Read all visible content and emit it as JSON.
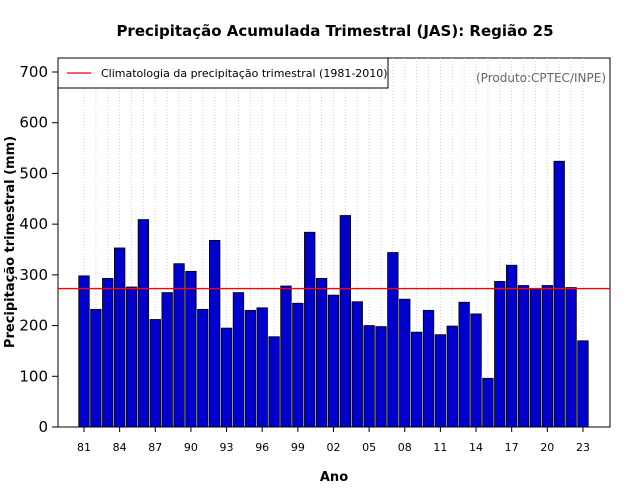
{
  "chart_data": {
    "type": "bar",
    "title": "Precipitação Acumulada Trimestral (JAS): Região 25",
    "xlabel": "Ano",
    "ylabel": "Precipitação trimestral (mm)",
    "ylim": [
      0,
      720
    ],
    "yticks": [
      0,
      100,
      200,
      300,
      400,
      500,
      600,
      700
    ],
    "grid": "vertical dotted",
    "years": [
      1981,
      1982,
      1983,
      1984,
      1985,
      1986,
      1987,
      1988,
      1989,
      1990,
      1991,
      1992,
      1993,
      1994,
      1995,
      1996,
      1997,
      1998,
      1999,
      2000,
      2001,
      2002,
      2003,
      2004,
      2005,
      2006,
      2007,
      2008,
      2009,
      2010,
      2011,
      2012,
      2013,
      2014,
      2015,
      2016,
      2017,
      2018,
      2019,
      2020,
      2021,
      2022,
      2023
    ],
    "values": [
      298,
      232,
      293,
      353,
      276,
      409,
      212,
      265,
      322,
      307,
      232,
      368,
      195,
      265,
      230,
      235,
      178,
      278,
      244,
      384,
      293,
      260,
      417,
      247,
      200,
      198,
      344,
      252,
      187,
      230,
      182,
      199,
      246,
      223,
      96,
      287,
      319,
      279,
      272,
      279,
      524,
      275,
      170
    ],
    "xtick_labels": [
      {
        "label": "81",
        "index": 0
      },
      {
        "label": "84",
        "index": 3
      },
      {
        "label": "87",
        "index": 6
      },
      {
        "label": "90",
        "index": 9
      },
      {
        "label": "93",
        "index": 12
      },
      {
        "label": "96",
        "index": 15
      },
      {
        "label": "99",
        "index": 18
      },
      {
        "label": "02",
        "index": 21
      },
      {
        "label": "05",
        "index": 24
      },
      {
        "label": "08",
        "index": 27
      },
      {
        "label": "11",
        "index": 30
      },
      {
        "label": "14",
        "index": 33
      },
      {
        "label": "17",
        "index": 36
      },
      {
        "label": "20",
        "index": 39
      },
      {
        "label": "23",
        "index": 42
      }
    ],
    "climatology": {
      "value": 273,
      "label": "Climatologia da precipitação trimestral (1981-2010)",
      "color": "#ff0000"
    },
    "bar_color": "#0000cd",
    "legend_position": "top-left",
    "credit": "(Produto:CPTEC/INPE)"
  }
}
